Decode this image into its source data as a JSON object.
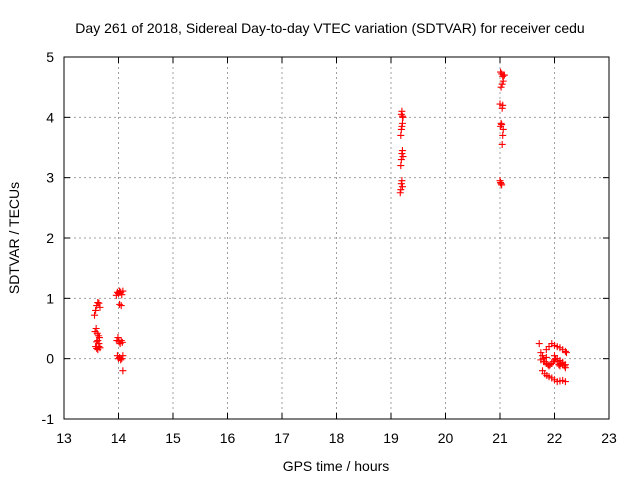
{
  "chart_data": {
    "type": "scatter",
    "title": "Day 261 of 2018, Sidereal Day-to-day VTEC variation (SDTVAR) for receiver cedu",
    "xlabel": "GPS time / hours",
    "ylabel": "SDTVAR / TECUs",
    "xlim": [
      13,
      23
    ],
    "ylim": [
      -1,
      5
    ],
    "xticks": [
      "13",
      "14",
      "15",
      "16",
      "17",
      "18",
      "19",
      "20",
      "21",
      "22",
      "23"
    ],
    "yticks": [
      "-1",
      "0",
      "1",
      "2",
      "3",
      "4",
      "5"
    ],
    "grid": true,
    "marker": "+",
    "color": "#ff0000",
    "series": [
      {
        "name": "SDTVAR",
        "x": [
          13.56,
          13.58,
          13.6,
          13.62,
          13.64,
          13.66,
          13.57,
          13.59,
          13.61,
          13.63,
          13.65,
          13.6,
          13.62,
          13.64,
          13.58,
          13.6,
          13.62,
          13.64,
          13.66,
          13.96,
          13.98,
          14.0,
          14.02,
          14.04,
          14.06,
          14.08,
          13.97,
          13.99,
          14.01,
          14.03,
          14.05,
          14.07,
          13.98,
          14.0,
          14.02,
          14.04,
          14.06,
          14.08,
          14.02,
          14.05,
          14.08,
          19.17,
          19.18,
          19.19,
          19.2,
          19.21,
          19.18,
          19.19,
          19.2,
          19.21,
          19.22,
          19.18,
          19.19,
          19.2,
          19.21,
          19.22,
          19.19,
          19.2,
          19.21,
          21.0,
          21.01,
          21.02,
          21.03,
          21.04,
          21.05,
          21.06,
          21.01,
          21.02,
          21.03,
          21.04,
          21.05,
          21.0,
          21.02,
          21.04,
          21.06,
          21.08,
          21.01,
          21.03,
          21.05,
          21.07,
          21.72,
          21.75,
          21.78,
          21.8,
          21.82,
          21.85,
          21.88,
          21.9,
          21.92,
          21.95,
          21.98,
          22.0,
          22.02,
          22.05,
          22.08,
          22.1,
          22.12,
          22.15,
          22.18,
          22.2,
          21.78,
          21.82,
          21.86,
          21.9,
          21.95,
          22.0,
          22.05,
          22.1,
          22.15,
          22.2,
          21.85,
          21.9,
          21.95,
          22.0,
          22.05,
          22.1,
          22.15,
          22.2,
          22.22,
          21.75,
          21.8,
          21.85,
          22.0,
          22.05,
          22.1,
          22.15,
          22.2
        ],
        "y": [
          0.72,
          0.8,
          0.88,
          0.93,
          0.92,
          0.85,
          0.45,
          0.5,
          0.42,
          0.38,
          0.35,
          0.28,
          0.3,
          0.25,
          0.2,
          0.17,
          0.15,
          0.2,
          0.18,
          1.05,
          1.1,
          1.08,
          1.12,
          1.1,
          1.06,
          1.12,
          0.3,
          0.35,
          0.28,
          0.25,
          0.3,
          0.27,
          0.05,
          0.0,
          0.02,
          -0.02,
          0.0,
          0.05,
          0.9,
          0.88,
          -0.2,
          2.75,
          2.8,
          2.9,
          2.95,
          2.85,
          3.2,
          3.3,
          3.4,
          3.45,
          3.35,
          3.7,
          3.8,
          3.85,
          3.9,
          4.0,
          4.05,
          4.1,
          4.02,
          2.95,
          2.92,
          2.9,
          2.88,
          3.55,
          3.7,
          3.8,
          3.85,
          3.9,
          3.88,
          4.15,
          4.2,
          4.22,
          4.5,
          4.55,
          4.6,
          4.7,
          4.75,
          4.72,
          4.68,
          4.7,
          0.25,
          0.1,
          0.05,
          0.0,
          -0.05,
          -0.08,
          -0.1,
          -0.12,
          -0.1,
          -0.08,
          -0.05,
          -0.02,
          0.0,
          -0.05,
          -0.1,
          -0.12,
          -0.08,
          -0.1,
          -0.12,
          -0.15,
          -0.2,
          -0.25,
          -0.28,
          -0.3,
          -0.32,
          -0.35,
          -0.38,
          -0.37,
          -0.36,
          -0.38,
          0.15,
          0.2,
          0.25,
          0.22,
          0.2,
          0.18,
          0.15,
          0.12,
          0.1,
          -0.02,
          -0.05,
          0.02,
          0.05,
          0.0,
          -0.03,
          -0.06,
          -0.1
        ]
      }
    ]
  }
}
